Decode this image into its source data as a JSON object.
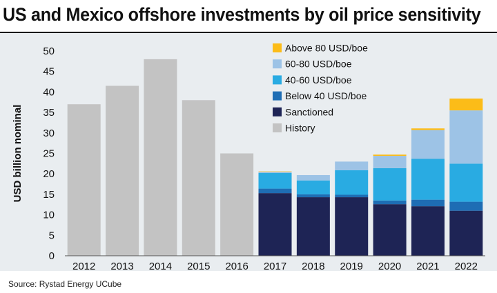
{
  "chart_data": {
    "type": "bar",
    "stacked": true,
    "title": "US and Mexico offshore investments by oil price sensitivity",
    "ylabel": "USD billion nominal",
    "xlabel": "",
    "ylim": [
      0,
      50
    ],
    "yticks": [
      0,
      5,
      10,
      15,
      20,
      25,
      30,
      35,
      40,
      45,
      50
    ],
    "grid": false,
    "legend_position": "top-right",
    "categories": [
      "2012",
      "2013",
      "2014",
      "2015",
      "2016",
      "2017",
      "2018",
      "2019",
      "2020",
      "2021",
      "2022"
    ],
    "series": [
      {
        "name": "History",
        "color": "#c3c3c3",
        "values": [
          37,
          41.5,
          48,
          38,
          25,
          0,
          0,
          0,
          0,
          0,
          0
        ]
      },
      {
        "name": "Sanctioned",
        "color": "#1e2455",
        "values": [
          0,
          0,
          0,
          0,
          0,
          15.3,
          14.3,
          14.3,
          12.6,
          12.1,
          11
        ]
      },
      {
        "name": "Below 40 USD/boe",
        "color": "#1e6db4",
        "values": [
          0,
          0,
          0,
          0,
          0,
          1.1,
          0.7,
          0.6,
          0.9,
          1.6,
          2.2
        ]
      },
      {
        "name": "40-60 USD/boe",
        "color": "#29abe2",
        "values": [
          0,
          0,
          0,
          0,
          0,
          3.8,
          3.4,
          6,
          7.9,
          10,
          9.3
        ]
      },
      {
        "name": "60-80 USD/boe",
        "color": "#9dc3e6",
        "values": [
          0,
          0,
          0,
          0,
          0,
          0.3,
          1.3,
          2.1,
          3,
          7,
          13
        ]
      },
      {
        "name": "Above 80 USD/boe",
        "color": "#fcbc18",
        "values": [
          0,
          0,
          0,
          0,
          0,
          0.1,
          0,
          0,
          0.3,
          0.4,
          2.9
        ]
      }
    ],
    "legend_order": [
      "Above 80 USD/boe",
      "60-80 USD/boe",
      "40-60 USD/boe",
      "Below 40 USD/boe",
      "Sanctioned",
      "History"
    ]
  },
  "source": "Source: Rystad Energy UCube",
  "colors": {
    "background": "#e9edf0",
    "axis": "#555555"
  }
}
